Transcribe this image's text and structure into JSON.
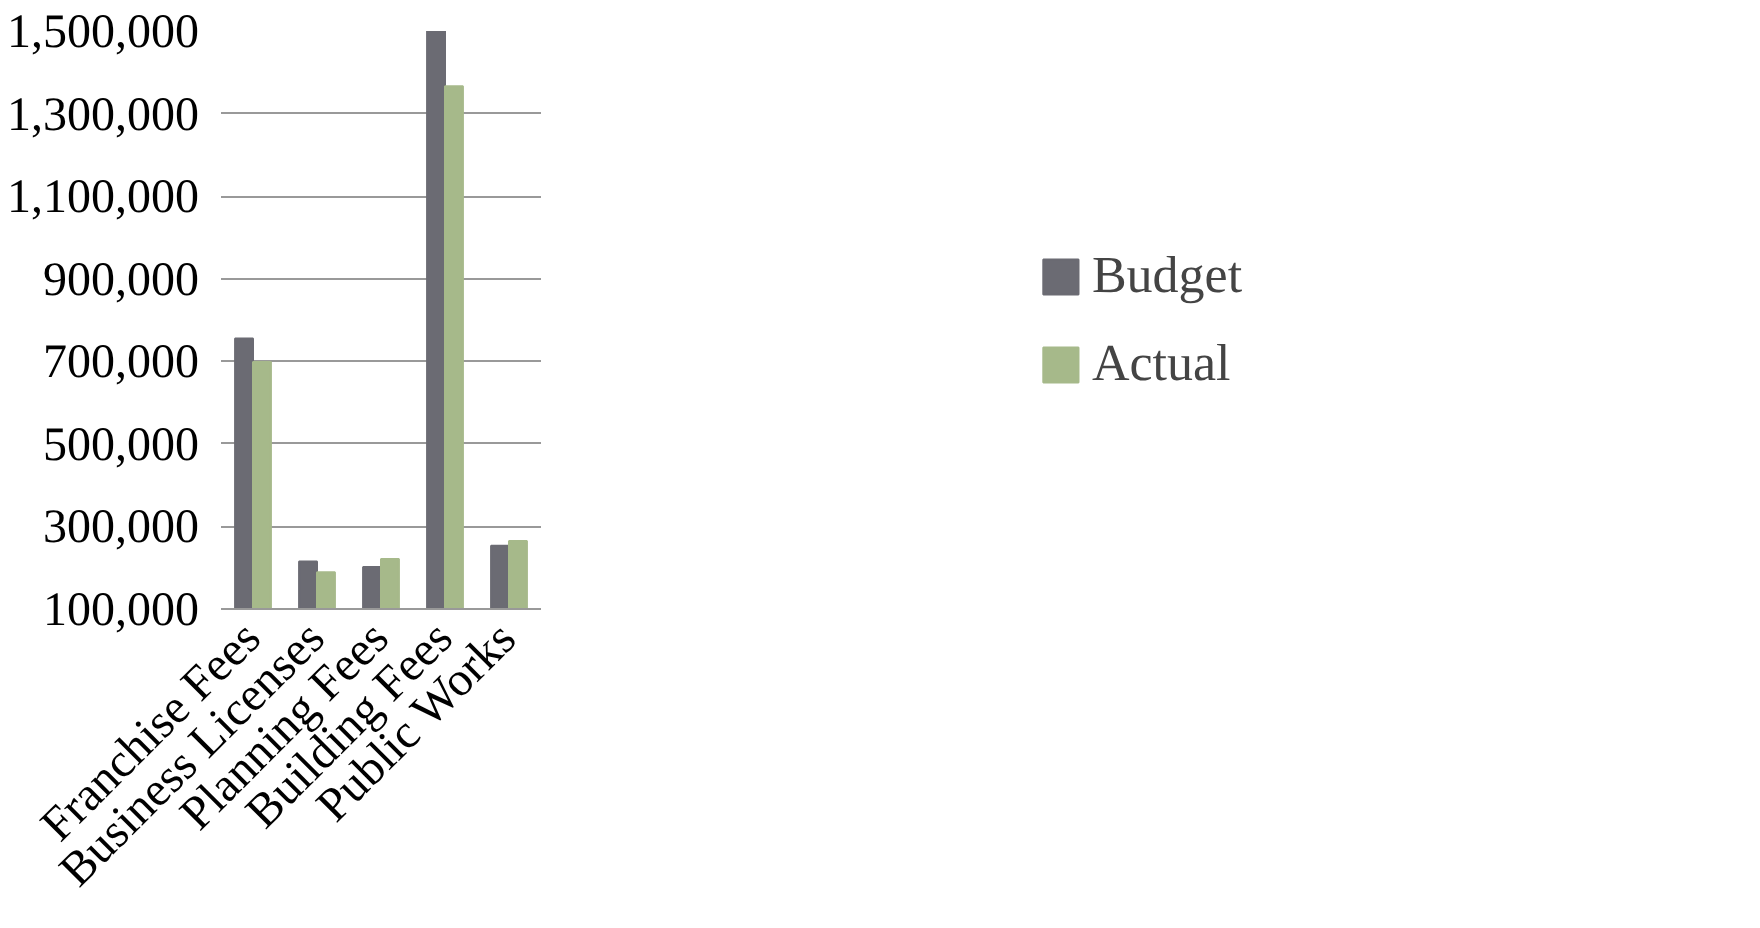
{
  "chart_data": {
    "type": "bar",
    "categories": [
      "Franchise Fees",
      "Business Licenses",
      "Planning Fees",
      "Building Fees",
      "Public Works"
    ],
    "series": [
      {
        "name": "Budget",
        "color": "#6b6b73",
        "values": [
          755000,
          215000,
          202000,
          1500000,
          253000
        ]
      },
      {
        "name": "Actual",
        "color": "#a6b98a",
        "values": [
          698000,
          189000,
          221000,
          1366000,
          265000
        ]
      }
    ],
    "ylim": [
      100000,
      1500000
    ],
    "yticks": [
      {
        "value": 100000,
        "label": "100,000"
      },
      {
        "value": 300000,
        "label": "300,000"
      },
      {
        "value": 500000,
        "label": "500,000"
      },
      {
        "value": 700000,
        "label": "700,000"
      },
      {
        "value": 900000,
        "label": "900,000"
      },
      {
        "value": 1100000,
        "label": "1,100,000"
      },
      {
        "value": 1300000,
        "label": "1,300,000"
      },
      {
        "value": 1500000,
        "label": "1,500,000"
      }
    ],
    "grid": "y",
    "legend": "right"
  }
}
